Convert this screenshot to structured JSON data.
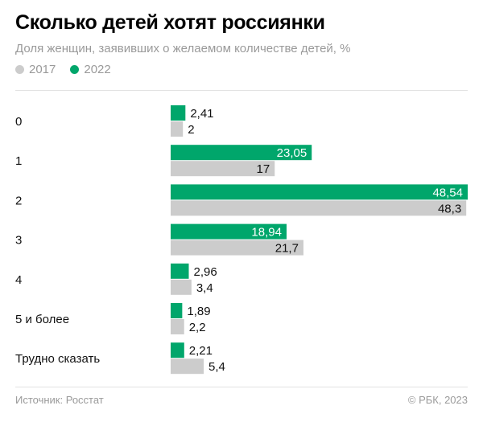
{
  "title": "Сколько детей хотят россиянки",
  "subtitle": "Доля женщин, заявивших о желаемом количестве детей, %",
  "legend": [
    {
      "label": "2017",
      "color": "#cccccc"
    },
    {
      "label": "2022",
      "color": "#00a66b"
    }
  ],
  "footer": {
    "source": "Источник: Росстат",
    "copyright": "© РБК, 2023"
  },
  "chart_data": {
    "type": "bar",
    "orientation": "horizontal",
    "title": "Сколько детей хотят россиянки",
    "subtitle": "Доля женщин, заявивших о желаемом количестве детей, %",
    "categories": [
      "0",
      "1",
      "2",
      "3",
      "4",
      "5 и более",
      "Трудно сказать"
    ],
    "series": [
      {
        "name": "2022",
        "color": "#00a66b",
        "values": [
          2.41,
          23.05,
          48.54,
          18.94,
          2.96,
          1.89,
          2.21
        ],
        "labels": [
          "2,41",
          "23,05",
          "48,54",
          "18,94",
          "2,96",
          "1,89",
          "2,21"
        ]
      },
      {
        "name": "2017",
        "color": "#cccccc",
        "values": [
          2,
          17,
          48.3,
          21.7,
          3.4,
          2.2,
          5.4
        ],
        "labels": [
          "2",
          "17",
          "48,3",
          "21,7",
          "3,4",
          "2,2",
          "5,4"
        ]
      }
    ],
    "xlim": [
      0,
      48.54
    ],
    "legend_position": "top-left",
    "grid": false
  }
}
